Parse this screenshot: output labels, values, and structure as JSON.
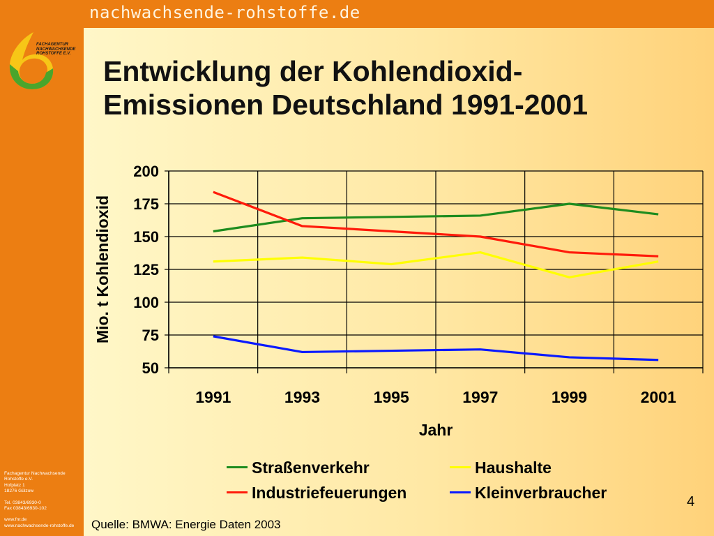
{
  "header": {
    "site_title": "nachwachsende-rohstoffe.de"
  },
  "logo": {
    "lines": [
      "FACHAGENTUR",
      "NACHWACHSENDE",
      "ROHSTOFFE e.V."
    ]
  },
  "sidebar": {
    "contact_lines": [
      "Fachagentur Nachwachsende",
      "Rohstoffe e.V.",
      "Hofplatz 1",
      "18276 Gülzow"
    ],
    "phone_lines": [
      "Tel. 03843/6930-0",
      "Fax 03843/6930-102"
    ],
    "web_lines": [
      "www.fnr.de",
      "www.nachwachsende-rohstoffe.de"
    ]
  },
  "slide": {
    "title_lines": [
      "Entwicklung der Kohlendioxid-",
      "Emissionen Deutschland 1991-2001"
    ],
    "page_number": "4",
    "source": "Quelle: BMWA: Energie Daten 2003"
  },
  "chart_data": {
    "type": "line",
    "title": "",
    "xlabel": "Jahr",
    "ylabel": "Mio. t Kohlendioxid",
    "x": [
      1991,
      1993,
      1995,
      1997,
      1999,
      2001
    ],
    "xticks": [
      "1991",
      "1993",
      "1995",
      "1997",
      "1999",
      "2001"
    ],
    "yticks": [
      50,
      75,
      100,
      125,
      150,
      175,
      200
    ],
    "ylim": [
      50,
      200
    ],
    "grid": true,
    "legend_position": "bottom",
    "series": [
      {
        "name": "Straßenverkehr",
        "color": "#1e8c1e",
        "values": [
          154,
          164,
          165,
          166,
          175,
          167
        ]
      },
      {
        "name": "Industriefeuerungen",
        "color": "#ff1a0a",
        "values": [
          184,
          158,
          154,
          150,
          138,
          135
        ]
      },
      {
        "name": "Haushalte",
        "color": "#ffff00",
        "values": [
          131,
          134,
          129,
          138,
          119,
          131
        ]
      },
      {
        "name": "Kleinverbraucher",
        "color": "#0a1aff",
        "values": [
          74,
          62,
          63,
          64,
          58,
          56
        ]
      }
    ]
  }
}
